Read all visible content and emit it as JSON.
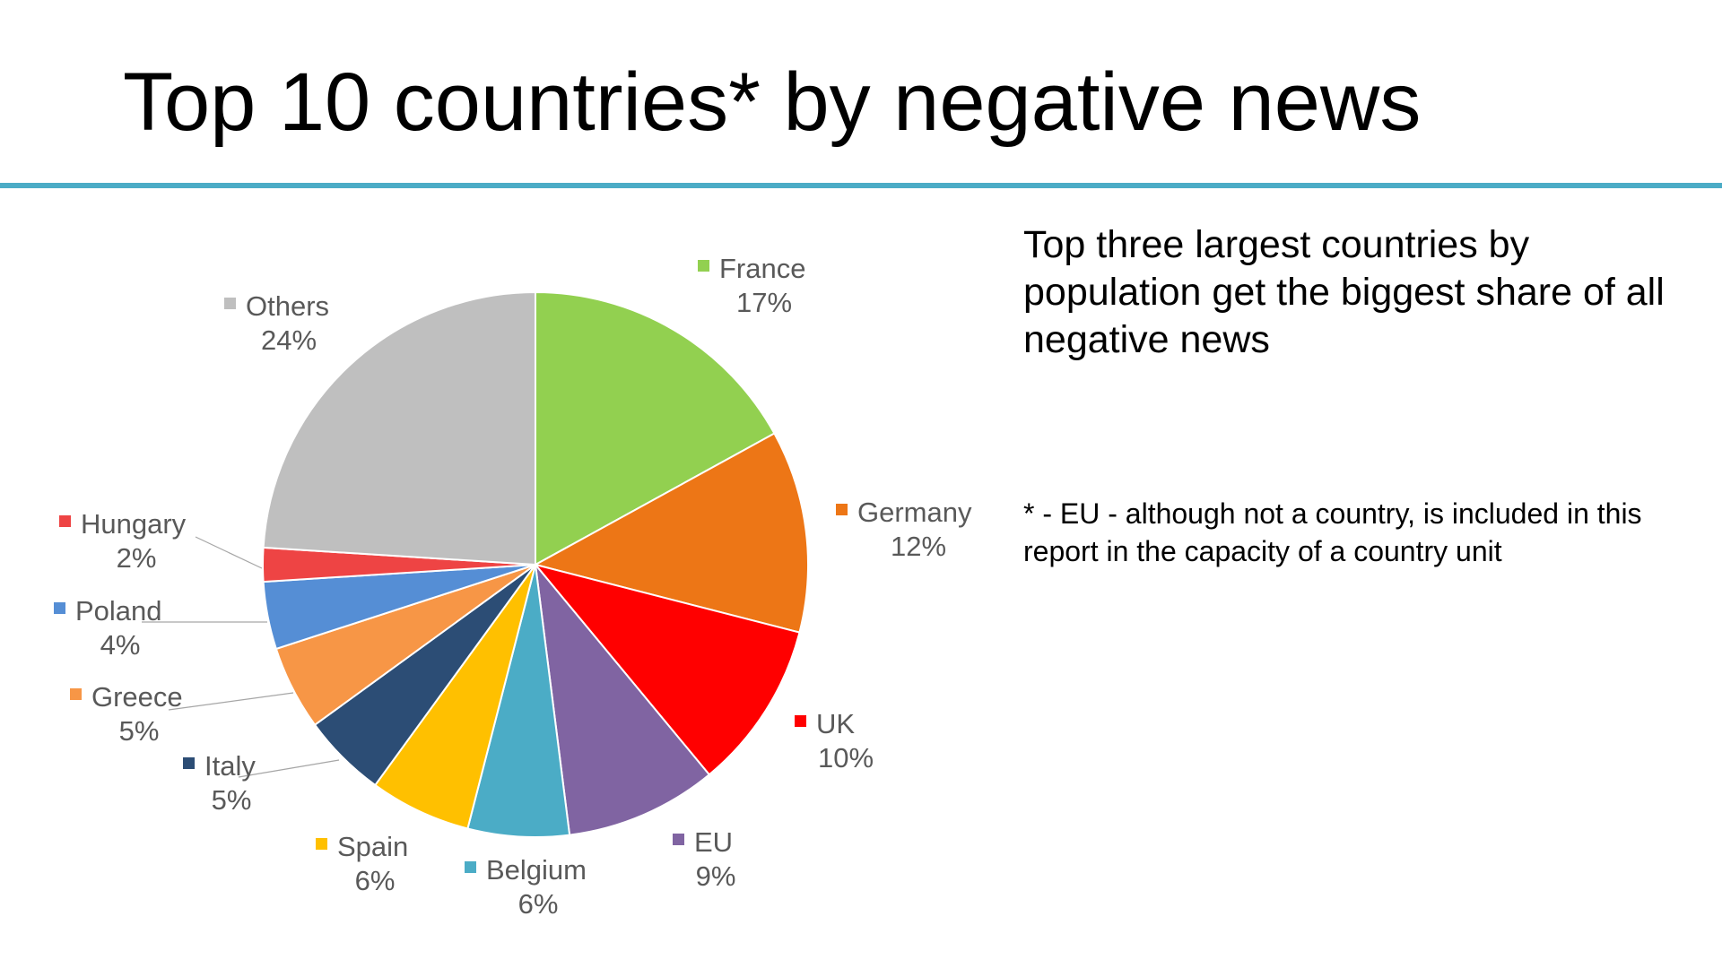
{
  "slide": {
    "title": "Top 10 countries* by negative news",
    "rule_color": "#4bacc6",
    "note_main": "Top three largest countries by population get the biggest share of all negative news",
    "note_footnote": "* -  EU - although not a country, is included in this report in the capacity of a country unit"
  },
  "chart_data": {
    "type": "pie",
    "title": "",
    "unit": "%",
    "start_angle_deg": 0,
    "direction": "clockwise",
    "slices": [
      {
        "label": "France",
        "value": 17,
        "display": "17%",
        "color": "#92d050"
      },
      {
        "label": "Germany",
        "value": 12,
        "display": "12%",
        "color": "#ed7616"
      },
      {
        "label": "UK",
        "value": 10,
        "display": "10%",
        "color": "#ff0000"
      },
      {
        "label": "EU",
        "value": 9,
        "display": "9%",
        "color": "#8064a2"
      },
      {
        "label": "Belgium",
        "value": 6,
        "display": "6%",
        "color": "#4bacc6"
      },
      {
        "label": "Spain",
        "value": 6,
        "display": "6%",
        "color": "#ffc000"
      },
      {
        "label": "Italy",
        "value": 5,
        "display": "5%",
        "color": "#2c4d75"
      },
      {
        "label": "Greece",
        "value": 5,
        "display": "5%",
        "color": "#f79646"
      },
      {
        "label": "Poland",
        "value": 4,
        "display": "4%",
        "color": "#558ed5"
      },
      {
        "label": "Hungary",
        "value": 2,
        "display": "2%",
        "color": "#ee4444"
      },
      {
        "label": "Others",
        "value": 24,
        "display": "24%",
        "color": "#bfbfbf"
      }
    ]
  }
}
